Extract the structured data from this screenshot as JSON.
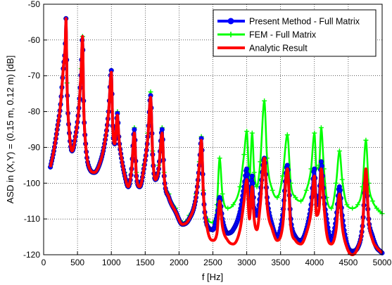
{
  "chart_data": {
    "type": "line",
    "title": "",
    "xlabel": "f [Hz]",
    "ylabel": "ASD in (X,Y) = (0.15 m, 0.12 m) [dB]",
    "xlim": [
      0,
      5000
    ],
    "ylim": [
      -120,
      -50
    ],
    "x_ticks": [
      "0",
      "500",
      "1000",
      "1500",
      "2000",
      "2500",
      "3000",
      "3500",
      "4000",
      "4500",
      "5000"
    ],
    "y_ticks": [
      "-120",
      "-110",
      "-100",
      "-90",
      "-80",
      "-70",
      "-60",
      "-50"
    ],
    "grid": "on (dotted)",
    "legend_position": "top-right",
    "resonance_peaks_hz": [
      330,
      575,
      1000,
      1090,
      1340,
      1580,
      1750,
      2330,
      2600,
      3000,
      3080,
      3260,
      3600,
      4000,
      4100,
      4140,
      4370,
      4760
    ],
    "series": [
      {
        "name": "Present Method - Full Matrix",
        "color": "#0000ff",
        "marker": "circle",
        "x": [
          100,
          150,
          200,
          250,
          290,
          320,
          330,
          345,
          380,
          420,
          470,
          520,
          555,
          575,
          590,
          620,
          680,
          750,
          820,
          900,
          960,
          1000,
          1020,
          1050,
          1090,
          1110,
          1150,
          1200,
          1250,
          1300,
          1340,
          1370,
          1420,
          1480,
          1540,
          1580,
          1610,
          1650,
          1700,
          1750,
          1780,
          1850,
          1950,
          2050,
          2150,
          2250,
          2300,
          2330,
          2360,
          2420,
          2500,
          2560,
          2600,
          2640,
          2720,
          2800,
          2900,
          2960,
          3000,
          3040,
          3080,
          3110,
          3150,
          3200,
          3260,
          3300,
          3380,
          3450,
          3530,
          3600,
          3650,
          3720,
          3800,
          3880,
          3950,
          4000,
          4030,
          4070,
          4100,
          4140,
          4180,
          4250,
          4320,
          4370,
          4410,
          4480,
          4560,
          4640,
          4710,
          4760,
          4800,
          4860,
          4920,
          4970,
          5000
        ],
        "y": [
          -95.5,
          -91,
          -85,
          -78,
          -68,
          -61,
          -54,
          -72,
          -86,
          -91,
          -87,
          -79,
          -68,
          -59,
          -77,
          -89,
          -96,
          -97,
          -95,
          -89,
          -80,
          -68.5,
          -84,
          -89,
          -80.5,
          -87,
          -93,
          -98,
          -101,
          -96,
          -85,
          -98,
          -101,
          -96,
          -87,
          -75.5,
          -92,
          -99,
          -96,
          -85,
          -98,
          -104,
          -108,
          -111.5,
          -110,
          -104,
          -95,
          -87.5,
          -103,
          -112,
          -113,
          -109,
          -104,
          -110,
          -114,
          -113,
          -108,
          -101,
          -96,
          -106,
          -98,
          -107,
          -109,
          -103,
          -93,
          -104,
          -112,
          -115,
          -109,
          -95,
          -110,
          -115,
          -116,
          -113,
          -106,
          -96,
          -106,
          -104,
          -94,
          -104,
          -110,
          -116,
          -110,
          -101,
          -109,
          -117,
          -119,
          -118,
          -112,
          -99,
          -110,
          -115,
          -118,
          -119,
          -119.5
        ]
      },
      {
        "name": "FEM - Full Matrix",
        "color": "#00ff00",
        "marker": "plus",
        "x": [
          100,
          150,
          200,
          250,
          290,
          320,
          330,
          345,
          380,
          420,
          470,
          520,
          555,
          575,
          590,
          620,
          680,
          750,
          820,
          900,
          960,
          1000,
          1020,
          1050,
          1090,
          1110,
          1150,
          1200,
          1250,
          1300,
          1340,
          1370,
          1420,
          1480,
          1540,
          1580,
          1610,
          1650,
          1700,
          1750,
          1780,
          1850,
          1950,
          2050,
          2150,
          2250,
          2300,
          2330,
          2360,
          2420,
          2500,
          2560,
          2600,
          2640,
          2720,
          2800,
          2900,
          2960,
          3000,
          3040,
          3080,
          3110,
          3150,
          3200,
          3260,
          3300,
          3380,
          3450,
          3530,
          3600,
          3650,
          3720,
          3800,
          3880,
          3950,
          4000,
          4030,
          4070,
          4100,
          4140,
          4180,
          4250,
          4320,
          4370,
          4410,
          4480,
          4560,
          4640,
          4710,
          4760,
          4800,
          4860,
          4920,
          4970,
          5000
        ],
        "y": [
          -95.5,
          -91,
          -85,
          -78,
          -68,
          -61,
          -54,
          -72,
          -86,
          -91,
          -87,
          -79,
          -68,
          -59,
          -77,
          -89,
          -96,
          -97,
          -95,
          -89,
          -80,
          -68.5,
          -84,
          -89,
          -80,
          -87,
          -93,
          -97,
          -100,
          -96,
          -84.5,
          -97,
          -100,
          -95,
          -86,
          -74.5,
          -91,
          -98,
          -95,
          -84.5,
          -97,
          -103,
          -107,
          -111,
          -109,
          -103,
          -94,
          -87,
          -102,
          -110,
          -111,
          -106,
          -93,
          -103,
          -107,
          -106,
          -101,
          -92,
          -85.5,
          -99,
          -86,
          -97,
          -101,
          -94,
          -77,
          -93,
          -102,
          -104,
          -98,
          -86.5,
          -100,
          -104,
          -105,
          -102,
          -96,
          -86,
          -96,
          -95,
          -84.5,
          -96,
          -104,
          -107,
          -100,
          -91,
          -99,
          -106,
          -107,
          -106,
          -101,
          -88,
          -100,
          -105,
          -107,
          -108,
          -108.5
        ]
      },
      {
        "name": "Analytic Result",
        "color": "#ff0000",
        "marker": "none",
        "x": [
          100,
          150,
          200,
          250,
          290,
          320,
          330,
          345,
          380,
          420,
          470,
          520,
          555,
          575,
          590,
          620,
          680,
          750,
          820,
          900,
          960,
          1000,
          1020,
          1050,
          1090,
          1110,
          1150,
          1200,
          1250,
          1300,
          1340,
          1370,
          1420,
          1480,
          1540,
          1580,
          1610,
          1650,
          1700,
          1750,
          1780,
          1850,
          1950,
          2050,
          2150,
          2250,
          2300,
          2330,
          2360,
          2420,
          2500,
          2560,
          2600,
          2640,
          2720,
          2800,
          2900,
          2960,
          3000,
          3040,
          3080,
          3110,
          3150,
          3200,
          3260,
          3300,
          3380,
          3450,
          3530,
          3600,
          3650,
          3720,
          3800,
          3880,
          3950,
          4000,
          4030,
          4070,
          4100,
          4140,
          4180,
          4250,
          4320,
          4370,
          4410,
          4480,
          4560,
          4640,
          4710,
          4760,
          4800,
          4860,
          4920,
          4970,
          5000
        ],
        "y": [
          -95.5,
          -91,
          -85,
          -78,
          -68,
          -61,
          -54,
          -72,
          -86,
          -91,
          -87,
          -79,
          -68,
          -59,
          -77,
          -89,
          -96,
          -97,
          -95,
          -89,
          -80,
          -69,
          -84,
          -89,
          -81,
          -87,
          -93,
          -98,
          -101,
          -96,
          -86,
          -98,
          -101,
          -96,
          -87,
          -76,
          -92,
          -99,
          -96,
          -86,
          -98,
          -104,
          -108,
          -111.5,
          -110,
          -104,
          -95,
          -88,
          -103,
          -113,
          -116,
          -114,
          -105,
          -112,
          -116,
          -117,
          -113,
          -105,
          -99,
          -110,
          -101,
          -110,
          -113,
          -106,
          -93,
          -106,
          -113,
          -116,
          -112,
          -96,
          -112,
          -116,
          -117,
          -114,
          -108,
          -98,
          -109,
          -107,
          -96,
          -106,
          -114,
          -117,
          -113,
          -103,
          -112,
          -118,
          -120,
          -118,
          -112,
          -96,
          -110,
          -116,
          -118,
          -119,
          -119.5
        ]
      }
    ]
  }
}
